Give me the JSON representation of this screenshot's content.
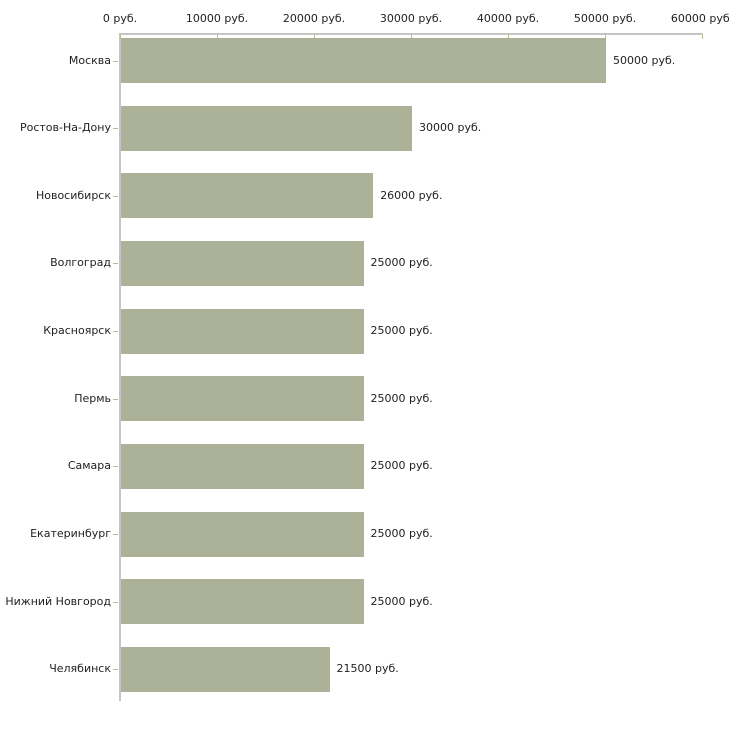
{
  "chart_data": {
    "type": "bar",
    "orientation": "horizontal",
    "title": "",
    "xlabel": "",
    "ylabel": "",
    "unit": "руб.",
    "categories": [
      "Москва",
      "Ростов-На-Дону",
      "Новосибирск",
      "Волгоград",
      "Красноярск",
      "Пермь",
      "Самара",
      "Екатеринбург",
      "Нижний Новгород",
      "Челябинск"
    ],
    "values": [
      50000,
      30000,
      26000,
      25000,
      25000,
      25000,
      25000,
      25000,
      25000,
      21500
    ],
    "value_labels": [
      "50000 руб.",
      "30000 руб.",
      "26000 руб.",
      "25000 руб.",
      "25000 руб.",
      "25000 руб.",
      "25000 руб.",
      "25000 руб.",
      "25000 руб.",
      "21500 руб."
    ],
    "x_axis": {
      "position": "top",
      "range": [
        0,
        60000
      ],
      "ticks": [
        0,
        10000,
        20000,
        30000,
        40000,
        50000,
        60000
      ],
      "tick_labels": [
        "0 руб.",
        "10000 руб.",
        "20000 руб.",
        "30000 руб.",
        "40000 руб.",
        "50000 руб.",
        "60000 руб."
      ]
    },
    "grid": false,
    "legend": false,
    "colors": {
      "bar": "#acb297",
      "axis_line": "#c5c5c5",
      "tick": "#b9b98c",
      "text": "#222222",
      "background": "#ffffff"
    }
  }
}
